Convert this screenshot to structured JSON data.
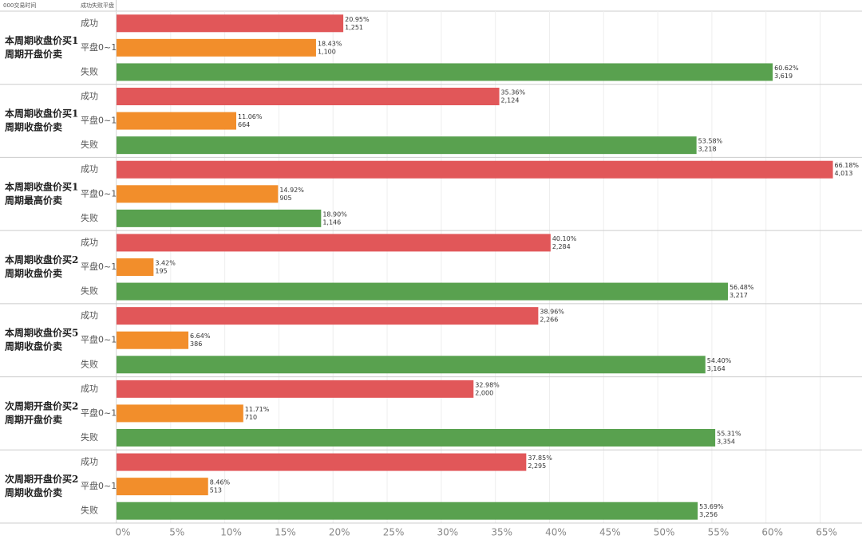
{
  "chart_data": {
    "type": "bar",
    "header": [
      "000交易时间",
      "成功失败平盘"
    ],
    "groups": [
      [
        "本周期收盘价买1",
        "周期开盘价卖"
      ],
      [
        "本周期收盘价买1",
        "周期收盘价卖"
      ],
      [
        "本周期收盘价买1",
        "周期最高价卖"
      ],
      [
        "本周期收盘价买2",
        "周期收盘价卖"
      ],
      [
        "本周期收盘价买5",
        "周期收盘价卖"
      ],
      [
        "次周期开盘价买2",
        "周期开盘价卖"
      ],
      [
        "次周期开盘价买2",
        "周期收盘价卖"
      ]
    ],
    "series": [
      {
        "name": "成功",
        "color": "#e15759",
        "values": [
          20.95,
          35.36,
          66.18,
          40.1,
          38.96,
          32.98,
          37.85
        ],
        "value_labels": [
          "20.95%",
          "35.36%",
          "66.18%",
          "40.10%",
          "38.96%",
          "32.98%",
          "37.85%"
        ],
        "counts": [
          1251,
          2124,
          4013,
          2284,
          2266,
          2000,
          2295
        ],
        "count_labels": [
          "1,251",
          "2,124",
          "4,013",
          "2,284",
          "2,266",
          "2,000",
          "2,295"
        ]
      },
      {
        "name": "平盘0~1",
        "color": "#f28e2b",
        "values": [
          18.43,
          11.06,
          14.92,
          3.42,
          6.64,
          11.71,
          8.46
        ],
        "value_labels": [
          "18.43%",
          "11.06%",
          "14.92%",
          "3.42%",
          "6.64%",
          "11.71%",
          "8.46%"
        ],
        "counts": [
          1100,
          664,
          905,
          195,
          386,
          710,
          513
        ],
        "count_labels": [
          "1,100",
          "664",
          "905",
          "195",
          "386",
          "710",
          "513"
        ]
      },
      {
        "name": "失败",
        "color": "#59a14f",
        "values": [
          60.62,
          53.58,
          18.9,
          56.48,
          54.4,
          55.31,
          53.69
        ],
        "value_labels": [
          "60.62%",
          "53.58%",
          "18.90%",
          "56.48%",
          "54.40%",
          "55.31%",
          "53.69%"
        ],
        "counts": [
          3619,
          3218,
          1146,
          3217,
          3164,
          3354,
          3256
        ],
        "count_labels": [
          "3,619",
          "3,218",
          "1,146",
          "3,217",
          "3,164",
          "3,354",
          "3,256"
        ]
      }
    ],
    "xlim": [
      0,
      68.5
    ],
    "xticks": [
      {
        "value": 0,
        "label": "0%"
      },
      {
        "value": 5,
        "label": "5%"
      },
      {
        "value": 10,
        "label": "10%"
      },
      {
        "value": 15,
        "label": "15%"
      },
      {
        "value": 20,
        "label": "20%"
      },
      {
        "value": 25,
        "label": "25%"
      },
      {
        "value": 30,
        "label": "30%"
      },
      {
        "value": 35,
        "label": "35%"
      },
      {
        "value": 40,
        "label": "40%"
      },
      {
        "value": 45,
        "label": "45%"
      },
      {
        "value": 50,
        "label": "50%"
      },
      {
        "value": 55,
        "label": "55%"
      },
      {
        "value": 60,
        "label": "60%"
      },
      {
        "value": 65,
        "label": "65%"
      }
    ],
    "grid": true
  }
}
